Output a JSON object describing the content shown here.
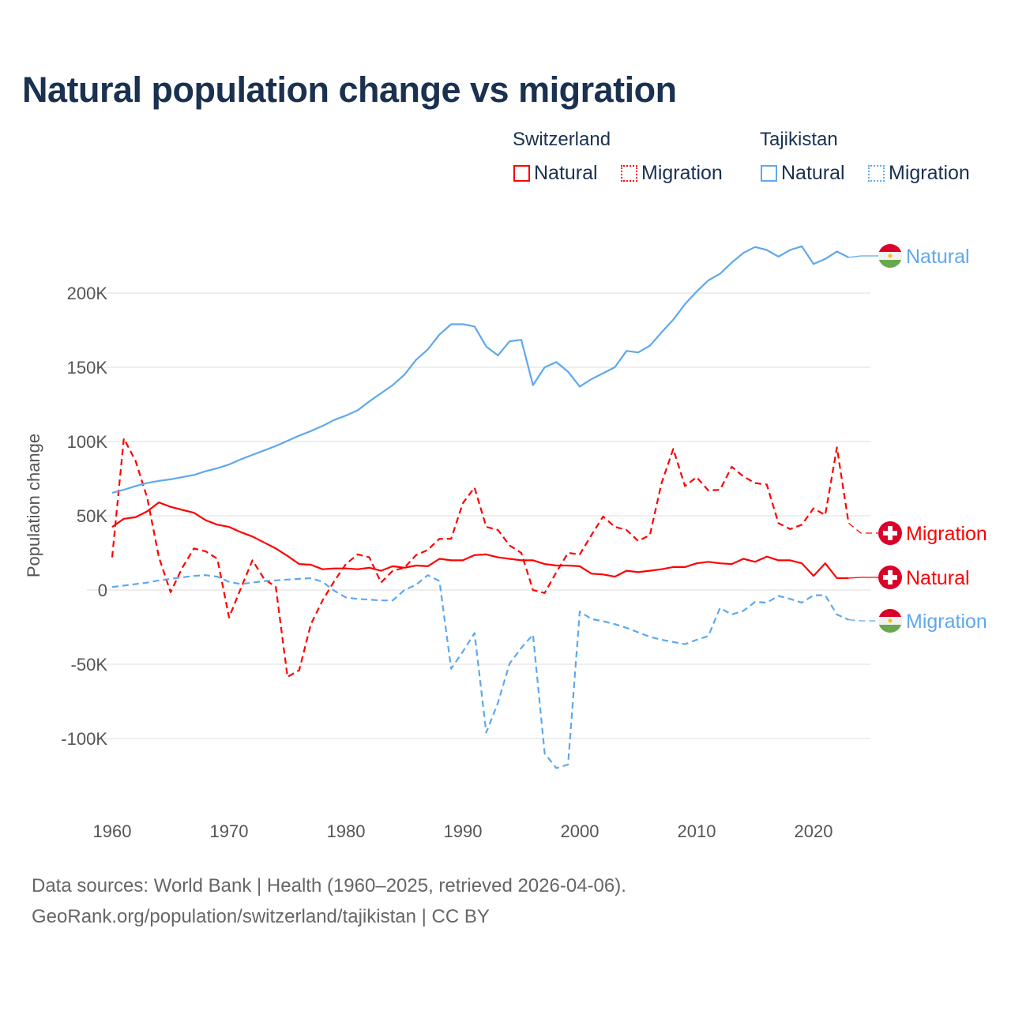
{
  "chart_data": {
    "type": "line",
    "title": "Natural population change vs migration",
    "xlabel": "",
    "ylabel": "Population change",
    "xlim": [
      1960,
      2025
    ],
    "ylim": [
      -130000,
      240000
    ],
    "yticks": [
      -100000,
      -50000,
      0,
      50000,
      100000,
      150000,
      200000
    ],
    "ytick_labels": [
      "-100K",
      "-50K",
      "0",
      "50K",
      "100K",
      "150K",
      "200K"
    ],
    "xticks": [
      1960,
      1970,
      1980,
      1990,
      2000,
      2010,
      2020
    ],
    "xtick_labels": [
      "1960",
      "1970",
      "1980",
      "1990",
      "2000",
      "2010",
      "2020"
    ],
    "grid": true,
    "legend_placement": "top-right",
    "legend_groups": [
      {
        "country": "Switzerland",
        "items": [
          "Natural",
          "Migration"
        ]
      },
      {
        "country": "Tajikistan",
        "items": [
          "Natural",
          "Migration"
        ]
      }
    ],
    "x_start": 1960,
    "series": [
      {
        "name": "Natural",
        "country": "Switzerland",
        "color": "#ff0000",
        "dash": false,
        "end_label": "Natural",
        "values": [
          42500,
          48000,
          49000,
          53000,
          59000,
          56000,
          54000,
          52000,
          47000,
          44000,
          42500,
          39000,
          36000,
          32000,
          28000,
          23000,
          17500,
          17000,
          14000,
          14500,
          14500,
          14000,
          15000,
          13000,
          16000,
          15000,
          16500,
          16000,
          21000,
          20000,
          20000,
          23500,
          24000,
          22000,
          21000,
          20000,
          20000,
          17500,
          16500,
          16500,
          16000,
          11000,
          10500,
          9000,
          13000,
          12000,
          13000,
          14000,
          15500,
          15500,
          18000,
          19000,
          18000,
          17500,
          21000,
          19000,
          22500,
          20000,
          20000,
          18000,
          9500,
          18000,
          8000,
          8000
        ]
      },
      {
        "name": "Migration",
        "country": "Switzerland",
        "color": "#ff0000",
        "dash": true,
        "end_label": "Migration",
        "values": [
          22000,
          102000,
          87000,
          62000,
          22000,
          -1500,
          15000,
          28000,
          26000,
          21000,
          -18500,
          1000,
          20000,
          7500,
          2000,
          -58500,
          -54000,
          -23000,
          -7000,
          6000,
          17500,
          24000,
          22000,
          5000,
          13000,
          15000,
          23500,
          27000,
          34500,
          34500,
          58500,
          69000,
          42500,
          40500,
          30000,
          25000,
          0,
          -2000,
          12000,
          25000,
          24000,
          37000,
          49500,
          42500,
          40500,
          33000,
          37000,
          72000,
          95000,
          70000,
          76000,
          67000,
          67500,
          83000,
          76500,
          72000,
          71000,
          45000,
          41000,
          44000,
          55000,
          50500,
          96000,
          45000
        ]
      },
      {
        "name": "Natural",
        "country": "Tajikistan",
        "color": "#5ea8ee",
        "dash": false,
        "end_label": "Natural",
        "values": [
          65500,
          67500,
          70000,
          72000,
          73500,
          74500,
          76000,
          77500,
          80000,
          82000,
          84500,
          88000,
          91000,
          94000,
          97000,
          100500,
          104000,
          107000,
          110500,
          114500,
          117500,
          121000,
          127000,
          132500,
          138000,
          145000,
          155000,
          162000,
          172000,
          179000,
          179000,
          177500,
          164000,
          158000,
          167500,
          168500,
          138000,
          150000,
          153500,
          147000,
          137000,
          142000,
          146000,
          150000,
          161000,
          160000,
          164500,
          173500,
          182000,
          192500,
          201000,
          208500,
          213000,
          220500,
          227000,
          231000,
          229000,
          224500,
          229000,
          231500,
          219500,
          223000,
          228000,
          224000
        ]
      },
      {
        "name": "Migration",
        "country": "Tajikistan",
        "color": "#5ea8ee",
        "dash": true,
        "end_label": "Migration",
        "values": [
          2000,
          3000,
          4000,
          5000,
          6500,
          7500,
          8500,
          9500,
          10000,
          9000,
          5500,
          4000,
          5000,
          6000,
          6500,
          7000,
          7500,
          8000,
          5500,
          -500,
          -5000,
          -6000,
          -6500,
          -7000,
          -7000,
          0,
          3500,
          10000,
          6000,
          -53000,
          -41500,
          -29000,
          -96000,
          -76000,
          -49500,
          -39000,
          -30000,
          -110000,
          -120000,
          -117500,
          -14500,
          -19500,
          -21000,
          -23000,
          -25500,
          -28500,
          -31500,
          -33500,
          -35000,
          -36500,
          -33500,
          -31000,
          -12000,
          -16500,
          -14000,
          -8000,
          -8500,
          -4000,
          -6000,
          -8500,
          -3500,
          -3500,
          -16500,
          -20000
        ]
      }
    ]
  },
  "source": {
    "line1": "Data sources: World Bank | Health (1960–2025, retrieved 2026-04-06).",
    "line2": "GeoRank.org/population/switzerland/tajikistan | CC BY"
  }
}
